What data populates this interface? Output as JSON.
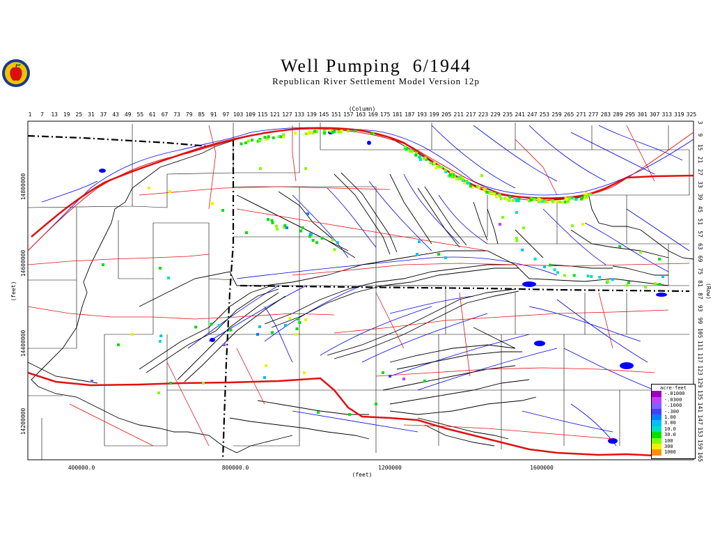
{
  "title": "Well Pumping  6/1944",
  "subtitle": "Republican River Settlement Model Version 12p",
  "axes": {
    "column_label": "(Column)",
    "row_label": "(Row)",
    "x_feet_label": "(feet)",
    "y_feet_label": "(feet)",
    "column_ticks": [
      "1",
      "7",
      "13",
      "19",
      "25",
      "31",
      "37",
      "43",
      "49",
      "55",
      "61",
      "67",
      "73",
      "79",
      "85",
      "91",
      "97",
      "103",
      "109",
      "115",
      "121",
      "127",
      "133",
      "139",
      "145",
      "151",
      "157",
      "163",
      "169",
      "175",
      "181",
      "187",
      "193",
      "199",
      "205",
      "211",
      "217",
      "223",
      "229",
      "235",
      "241",
      "247",
      "253",
      "259",
      "265",
      "271",
      "277",
      "283",
      "289",
      "295",
      "301",
      "307",
      "313",
      "319",
      "325"
    ],
    "row_ticks": [
      "3",
      "9",
      "15",
      "21",
      "27",
      "33",
      "39",
      "45",
      "51",
      "57",
      "63",
      "69",
      "75",
      "81",
      "87",
      "93",
      "99",
      "105",
      "111",
      "117",
      "123",
      "129",
      "135",
      "141",
      "147",
      "153",
      "159",
      "165"
    ],
    "x_feet_ticks": [
      "400000.0",
      "800000.0",
      "1200000",
      "1600000"
    ],
    "y_feet_ticks": [
      "14800000",
      "14600000",
      "14400000",
      "14200000"
    ]
  },
  "legend": {
    "title": "acre-feet",
    "items": [
      {
        "label": "-.01000",
        "color": "#a000c0"
      },
      {
        "label": "-.0300",
        "color": "#c040ff"
      },
      {
        "label": "-.1000",
        "color": "#8060ff"
      },
      {
        "label": "-.300",
        "color": "#4040ff"
      },
      {
        "label": "1.00",
        "color": "#0080ff"
      },
      {
        "label": "3.00",
        "color": "#00c0ff"
      },
      {
        "label": "10.0",
        "color": "#00e0c0"
      },
      {
        "label": "30.0",
        "color": "#00e000"
      },
      {
        "label": "100",
        "color": "#80ff00"
      },
      {
        "label": "300",
        "color": "#f0f000"
      },
      {
        "label": "1000",
        "color": "#ff9000"
      }
    ]
  },
  "colors": {
    "roads": "#e01010",
    "rivers": "#0000e0",
    "boundaries": "#000000",
    "lakes": "#0000ff"
  }
}
